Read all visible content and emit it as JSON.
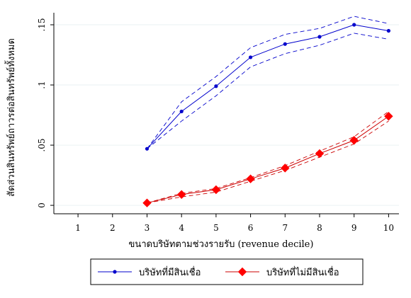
{
  "chart_data": {
    "type": "line",
    "title": "",
    "xlabel": "ขนาดบริษัทตามช่วงรายรับ (revenue decile)",
    "ylabel": "สัดส่วนสินทรัพย์ถาวรต่อสินทรัพย์ทั้งหมด",
    "x_ticks": [
      1,
      2,
      3,
      4,
      5,
      6,
      7,
      8,
      9,
      10
    ],
    "y_ticks": [
      0,
      0.05,
      0.1,
      0.15
    ],
    "y_tick_labels": [
      "0",
      ".05",
      ".1",
      ".15"
    ],
    "xlim": [
      0.3,
      10.3
    ],
    "ylim": [
      -0.007,
      0.16
    ],
    "grid": true,
    "legend_position": "bottom",
    "series": [
      {
        "name": "บริษัทที่มีสินเชื่อ",
        "color": "#0000cc",
        "marker": "circle",
        "x": [
          3,
          4,
          5,
          6,
          7,
          8,
          9,
          10
        ],
        "y": [
          0.047,
          0.078,
          0.099,
          0.123,
          0.134,
          0.14,
          0.15,
          0.145
        ],
        "ci_upper": [
          0.047,
          0.086,
          0.107,
          0.131,
          0.142,
          0.147,
          0.157,
          0.151
        ],
        "ci_lower": [
          0.047,
          0.07,
          0.091,
          0.115,
          0.126,
          0.133,
          0.143,
          0.138
        ]
      },
      {
        "name": "บริษัทที่ไม่มีสินเชื่อ",
        "color": "#cc0000",
        "marker_color": "#ff0000",
        "marker": "diamond",
        "x": [
          3,
          4,
          5,
          6,
          7,
          8,
          9,
          10
        ],
        "y": [
          0.002,
          0.009,
          0.013,
          0.022,
          0.031,
          0.043,
          0.054,
          0.074
        ],
        "ci_upper": [
          0.002,
          0.01,
          0.014,
          0.023,
          0.033,
          0.045,
          0.057,
          0.078
        ],
        "ci_lower": [
          0.002,
          0.007,
          0.011,
          0.02,
          0.029,
          0.04,
          0.051,
          0.07
        ]
      }
    ]
  }
}
